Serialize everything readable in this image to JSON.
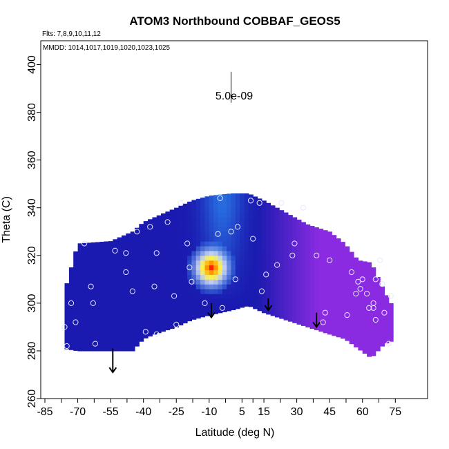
{
  "chart_data": {
    "type": "heatmap",
    "title": "ATOM3 Northbound COBBAF_GEOS5",
    "flights_label": "Flts: 7,8,9,10,11,12",
    "dates_label": "MMDD: 1014,1017,1019,1020,1023,1025",
    "xlabel": "Latitude (deg N)",
    "ylabel": "Theta (C)",
    "xlim": [
      -85,
      85
    ],
    "ylim": [
      260,
      410
    ],
    "x_ticks": [
      -85,
      -70,
      -55,
      -40,
      -25,
      -10,
      5,
      15,
      30,
      45,
      60,
      75
    ],
    "y_ticks": [
      260,
      280,
      300,
      320,
      340,
      360,
      380,
      400
    ],
    "scale_label": "5.0e-09",
    "colors": {
      "low": "#1a1ab0",
      "mid": "#2a7ae8",
      "high": "#ff2000",
      "east": "#8a2be2"
    },
    "coverage": [
      {
        "lat": -76,
        "bottom": 281,
        "top": 305
      },
      {
        "lat": -70,
        "bottom": 280,
        "top": 325
      },
      {
        "lat": -55,
        "bottom": 280,
        "top": 326
      },
      {
        "lat": -45,
        "bottom": 280,
        "top": 330
      },
      {
        "lat": -40,
        "bottom": 285,
        "top": 334
      },
      {
        "lat": -35,
        "bottom": 287,
        "top": 336
      },
      {
        "lat": -25,
        "bottom": 290,
        "top": 340
      },
      {
        "lat": -18,
        "bottom": 293,
        "top": 343
      },
      {
        "lat": -10,
        "bottom": 295,
        "top": 345
      },
      {
        "lat": 0,
        "bottom": 297,
        "top": 346
      },
      {
        "lat": 8,
        "bottom": 299,
        "top": 346
      },
      {
        "lat": 15,
        "bottom": 296,
        "top": 343
      },
      {
        "lat": 25,
        "bottom": 293,
        "top": 338
      },
      {
        "lat": 35,
        "bottom": 290,
        "top": 333
      },
      {
        "lat": 45,
        "bottom": 287,
        "top": 330
      },
      {
        "lat": 52,
        "bottom": 285,
        "top": 325
      },
      {
        "lat": 58,
        "bottom": 281,
        "top": 318
      },
      {
        "lat": 64,
        "bottom": 277,
        "top": 317
      },
      {
        "lat": 70,
        "bottom": 283,
        "top": 305
      },
      {
        "lat": 73,
        "bottom": 284,
        "top": 300
      }
    ],
    "hotspot": {
      "lat": -9,
      "theta": 315,
      "value": 1.0
    },
    "observations": [
      {
        "lat": -75,
        "theta": 282
      },
      {
        "lat": -76,
        "theta": 290
      },
      {
        "lat": -73,
        "theta": 300
      },
      {
        "lat": -71,
        "theta": 292
      },
      {
        "lat": -62,
        "theta": 283
      },
      {
        "lat": -63,
        "theta": 300
      },
      {
        "lat": -64,
        "theta": 307
      },
      {
        "lat": -67,
        "theta": 325
      },
      {
        "lat": -53,
        "theta": 322
      },
      {
        "lat": -48,
        "theta": 313
      },
      {
        "lat": -48,
        "theta": 321
      },
      {
        "lat": -45,
        "theta": 305
      },
      {
        "lat": -43,
        "theta": 330
      },
      {
        "lat": -39,
        "theta": 288
      },
      {
        "lat": -37,
        "theta": 332
      },
      {
        "lat": -35,
        "theta": 307
      },
      {
        "lat": -34,
        "theta": 287
      },
      {
        "lat": -34,
        "theta": 321
      },
      {
        "lat": -29,
        "theta": 334
      },
      {
        "lat": -25,
        "theta": 291
      },
      {
        "lat": -26,
        "theta": 303
      },
      {
        "lat": -23,
        "theta": 342
      },
      {
        "lat": -20,
        "theta": 325
      },
      {
        "lat": -18,
        "theta": 309
      },
      {
        "lat": -19,
        "theta": 315
      },
      {
        "lat": -12,
        "theta": 300
      },
      {
        "lat": -6,
        "theta": 329
      },
      {
        "lat": -5,
        "theta": 344
      },
      {
        "lat": -4,
        "theta": 298
      },
      {
        "lat": 0,
        "theta": 330
      },
      {
        "lat": 2,
        "theta": 310
      },
      {
        "lat": 3,
        "theta": 332
      },
      {
        "lat": 9,
        "theta": 343
      },
      {
        "lat": 10,
        "theta": 327
      },
      {
        "lat": 13,
        "theta": 342
      },
      {
        "lat": 14,
        "theta": 305
      },
      {
        "lat": 16,
        "theta": 312
      },
      {
        "lat": 21,
        "theta": 316
      },
      {
        "lat": 23,
        "theta": 342
      },
      {
        "lat": 28,
        "theta": 320
      },
      {
        "lat": 29,
        "theta": 325
      },
      {
        "lat": 33,
        "theta": 340
      },
      {
        "lat": 39,
        "theta": 320
      },
      {
        "lat": 42,
        "theta": 292
      },
      {
        "lat": 43,
        "theta": 296
      },
      {
        "lat": 45,
        "theta": 318
      },
      {
        "lat": 53,
        "theta": 295
      },
      {
        "lat": 55,
        "theta": 313
      },
      {
        "lat": 57,
        "theta": 304
      },
      {
        "lat": 59,
        "theta": 306
      },
      {
        "lat": 58,
        "theta": 309
      },
      {
        "lat": 60,
        "theta": 310
      },
      {
        "lat": 62,
        "theta": 304
      },
      {
        "lat": 63,
        "theta": 298
      },
      {
        "lat": 65,
        "theta": 298
      },
      {
        "lat": 65,
        "theta": 300
      },
      {
        "lat": 66,
        "theta": 293
      },
      {
        "lat": 66,
        "theta": 310
      },
      {
        "lat": 68,
        "theta": 318
      },
      {
        "lat": 69,
        "theta": 308
      },
      {
        "lat": 70,
        "theta": 296
      },
      {
        "lat": 72,
        "theta": 283
      },
      {
        "lat": 73,
        "theta": 303
      }
    ],
    "arrows": [
      {
        "lat": -54,
        "theta_top": 281,
        "theta_tip": 271
      },
      {
        "lat": -9,
        "theta_top": 300,
        "theta_tip": 294
      },
      {
        "lat": 17,
        "theta_top": 302,
        "theta_tip": 297
      },
      {
        "lat": 39,
        "theta_top": 296,
        "theta_tip": 290
      }
    ],
    "scale_bar": {
      "lat": 0,
      "theta_top": 397,
      "theta_bottom": 384
    }
  }
}
